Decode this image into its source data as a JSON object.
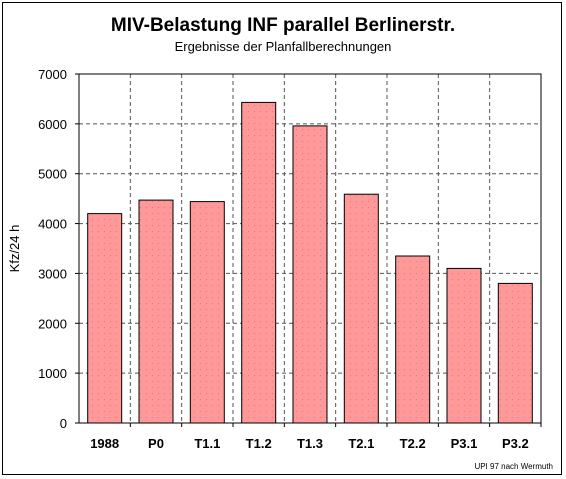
{
  "chart_data": {
    "type": "bar",
    "title": "MIV-Belastung INF parallel Berlinerstr.",
    "subtitle": "Ergebnisse der Planfallberechnungen",
    "xlabel": "",
    "ylabel": "Kfz/24 h",
    "categories": [
      "1988",
      "P0",
      "T1.1",
      "T1.2",
      "T1.3",
      "T2.1",
      "T2.2",
      "P3.1",
      "P3.2"
    ],
    "values": [
      4200,
      4470,
      4440,
      6430,
      5960,
      4590,
      3350,
      3100,
      2800
    ],
    "ylim": [
      0,
      7000
    ],
    "yticks": [
      0,
      1000,
      2000,
      3000,
      4000,
      5000,
      6000,
      7000
    ],
    "grid": true,
    "legend": "none",
    "bar_color": "#ff9999",
    "footnote": "UPI 97 nach Wermuth"
  }
}
